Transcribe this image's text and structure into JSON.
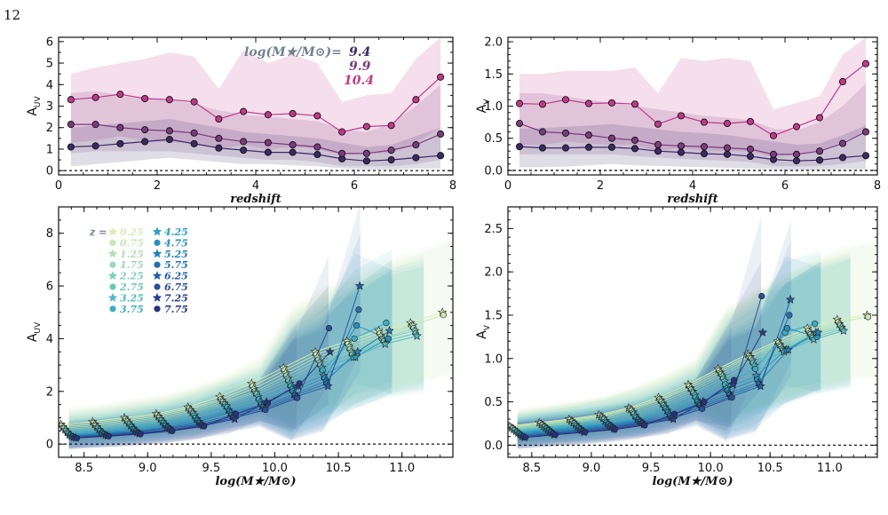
{
  "page_number": "12",
  "caption_fragment": "",
  "colors": {
    "mass_9_4": "#3b2a63",
    "mass_9_9": "#7a3b7e",
    "mass_10_4": "#c0398a",
    "legend_title": "#708090"
  },
  "chart_data": [
    {
      "id": "top-left",
      "type": "line",
      "xlabel": "redshift",
      "ylabel": "A",
      "ylabel_sub": "UV",
      "xlim": [
        0,
        8
      ],
      "ylim": [
        -0.2,
        6.2
      ],
      "xticks": [
        "0",
        "2",
        "4",
        "6",
        "8"
      ],
      "yticks": [
        "0",
        "1",
        "2",
        "3",
        "4",
        "5",
        "6"
      ],
      "legend_title": "log(M★/M⊙)=",
      "x": [
        0.25,
        0.75,
        1.25,
        1.75,
        2.25,
        2.75,
        3.25,
        3.75,
        4.25,
        4.75,
        5.25,
        5.75,
        6.25,
        6.75,
        7.25,
        7.75
      ],
      "series": [
        {
          "name": "9.4",
          "values": [
            1.1,
            1.15,
            1.25,
            1.35,
            1.45,
            1.25,
            1.05,
            0.95,
            0.85,
            0.85,
            0.75,
            0.55,
            0.45,
            0.5,
            0.6,
            0.7
          ],
          "lower": [
            0.2,
            0.3,
            0.4,
            0.5,
            0.6,
            0.5,
            0.4,
            0.3,
            0.3,
            0.25,
            0.2,
            0.1,
            0.05,
            0.05,
            0.1,
            0.1
          ],
          "upper": [
            2.0,
            2.1,
            2.2,
            2.3,
            2.4,
            2.2,
            2.0,
            1.8,
            1.7,
            1.6,
            1.5,
            1.3,
            1.1,
            1.2,
            1.6,
            2.0
          ]
        },
        {
          "name": "9.9",
          "values": [
            2.15,
            2.15,
            2.0,
            1.9,
            1.85,
            1.75,
            1.5,
            1.35,
            1.3,
            1.2,
            1.1,
            0.8,
            0.8,
            0.95,
            1.2,
            1.7
          ],
          "lower": [
            0.8,
            0.9,
            0.9,
            0.9,
            0.9,
            0.8,
            0.7,
            0.6,
            0.5,
            0.5,
            0.4,
            0.2,
            0.2,
            0.2,
            0.3,
            0.5
          ],
          "upper": [
            3.6,
            3.7,
            3.5,
            3.3,
            3.3,
            3.1,
            2.8,
            2.6,
            2.5,
            2.4,
            2.3,
            1.9,
            1.8,
            2.2,
            3.0,
            4.0
          ]
        },
        {
          "name": "10.4",
          "values": [
            3.3,
            3.4,
            3.55,
            3.35,
            3.3,
            3.2,
            2.4,
            2.75,
            2.6,
            2.65,
            2.55,
            1.8,
            2.05,
            2.1,
            3.3,
            4.35
          ],
          "lower": [
            1.3,
            1.4,
            1.6,
            1.4,
            1.3,
            1.3,
            1.0,
            1.2,
            1.0,
            1.1,
            1.0,
            0.7,
            0.8,
            0.8,
            1.3,
            2.0
          ],
          "upper": [
            4.5,
            4.8,
            5.0,
            5.2,
            5.5,
            5.3,
            3.8,
            5.6,
            5.0,
            5.4,
            5.0,
            3.2,
            3.5,
            3.6,
            5.2,
            6.2
          ]
        }
      ]
    },
    {
      "id": "top-right",
      "type": "line",
      "xlabel": "redshift",
      "ylabel": "A",
      "ylabel_sub": "V",
      "xlim": [
        0,
        8
      ],
      "ylim": [
        -0.07,
        2.07
      ],
      "xticks": [
        "0",
        "2",
        "4",
        "6",
        "8"
      ],
      "yticks": [
        "0.0",
        "0.5",
        "1.0",
        "1.5",
        "2.0"
      ],
      "x": [
        0.25,
        0.75,
        1.25,
        1.75,
        2.25,
        2.75,
        3.25,
        3.75,
        4.25,
        4.75,
        5.25,
        5.75,
        6.25,
        6.75,
        7.25,
        7.75
      ],
      "series": [
        {
          "name": "9.4",
          "values": [
            0.37,
            0.35,
            0.35,
            0.36,
            0.36,
            0.34,
            0.3,
            0.28,
            0.26,
            0.25,
            0.22,
            0.17,
            0.15,
            0.16,
            0.2,
            0.23
          ],
          "lower": [
            0.05,
            0.05,
            0.06,
            0.08,
            0.1,
            0.08,
            0.07,
            0.06,
            0.05,
            0.04,
            0.03,
            0.02,
            0.01,
            0.01,
            0.02,
            0.02
          ],
          "upper": [
            0.65,
            0.66,
            0.68,
            0.7,
            0.72,
            0.68,
            0.64,
            0.6,
            0.58,
            0.55,
            0.5,
            0.45,
            0.4,
            0.42,
            0.55,
            0.7
          ]
        },
        {
          "name": "9.9",
          "values": [
            0.73,
            0.6,
            0.58,
            0.55,
            0.5,
            0.47,
            0.4,
            0.38,
            0.37,
            0.35,
            0.33,
            0.25,
            0.25,
            0.3,
            0.42,
            0.6
          ],
          "lower": [
            0.25,
            0.25,
            0.25,
            0.25,
            0.25,
            0.22,
            0.2,
            0.18,
            0.16,
            0.15,
            0.13,
            0.07,
            0.06,
            0.07,
            0.1,
            0.15
          ],
          "upper": [
            1.2,
            1.2,
            1.15,
            1.1,
            1.05,
            1.0,
            0.95,
            0.9,
            0.85,
            0.82,
            0.78,
            0.65,
            0.62,
            0.75,
            1.0,
            1.35
          ]
        },
        {
          "name": "10.4",
          "values": [
            1.04,
            1.03,
            1.1,
            1.04,
            1.05,
            1.03,
            0.72,
            0.85,
            0.75,
            0.73,
            0.76,
            0.54,
            0.68,
            0.82,
            1.38,
            1.66
          ],
          "lower": [
            0.4,
            0.4,
            0.45,
            0.42,
            0.4,
            0.4,
            0.3,
            0.35,
            0.3,
            0.3,
            0.3,
            0.2,
            0.25,
            0.3,
            0.45,
            0.6
          ],
          "upper": [
            1.5,
            1.5,
            1.55,
            1.55,
            1.55,
            1.6,
            1.2,
            1.75,
            1.7,
            1.75,
            1.7,
            0.95,
            1.05,
            1.15,
            1.8,
            2.07
          ]
        }
      ]
    },
    {
      "id": "bottom-left",
      "type": "line",
      "xlabel": "log(M★/M⊙)",
      "ylabel": "A",
      "ylabel_sub": "UV",
      "xlim": [
        8.3,
        11.4
      ],
      "ylim": [
        -0.5,
        9.0
      ],
      "xticks": [
        "8.5",
        "9.0",
        "9.5",
        "10.0",
        "10.5",
        "11.0"
      ],
      "yticks": [
        "0",
        "2",
        "4",
        "6",
        "8"
      ],
      "legend_title": "z =",
      "z_values": [
        "0.25",
        "0.75",
        "1.25",
        "1.75",
        "2.25",
        "2.75",
        "3.25",
        "3.75",
        "4.25",
        "4.75",
        "5.25",
        "5.75",
        "6.25",
        "6.75",
        "7.25",
        "7.75"
      ],
      "z_colors": [
        "#d8eeb2",
        "#c6e7b4",
        "#b2e0b6",
        "#9dd7b9",
        "#85cebb",
        "#6cc4bd",
        "#54b9c0",
        "#3caec2",
        "#2c9fc1",
        "#2990bc",
        "#2680b6",
        "#2570ae",
        "#265fa4",
        "#284f98",
        "#293f8a",
        "#27327a"
      ],
      "z_markers": [
        "star",
        "circle",
        "star",
        "circle",
        "star",
        "circle",
        "star",
        "circle",
        "star",
        "circle",
        "star",
        "circle",
        "star",
        "circle",
        "star",
        "circle"
      ],
      "masses": [
        8.38,
        8.63,
        8.88,
        9.13,
        9.38,
        9.63,
        9.88,
        10.13,
        10.38,
        10.63,
        10.88,
        11.13,
        11.38
      ],
      "max_mass_index": [
        12,
        12,
        11,
        11,
        11,
        11,
        11,
        10,
        10,
        10,
        10,
        9,
        9,
        8,
        8,
        7
      ],
      "values": [
        [
          0.75,
          0.85,
          1.0,
          1.15,
          1.4,
          1.8,
          2.3,
          2.9,
          3.5,
          3.9,
          4.3,
          4.6,
          5.0
        ],
        [
          0.7,
          0.8,
          0.95,
          1.1,
          1.35,
          1.7,
          2.2,
          2.8,
          3.4,
          3.8,
          4.2,
          4.5,
          4.9
        ],
        [
          0.65,
          0.75,
          0.9,
          1.05,
          1.3,
          1.65,
          2.1,
          2.7,
          3.3,
          3.7,
          4.1,
          4.5,
          4.8
        ],
        [
          0.6,
          0.7,
          0.85,
          1.0,
          1.25,
          1.6,
          2.0,
          2.6,
          3.2,
          3.6,
          4.0,
          4.4,
          4.7
        ],
        [
          0.55,
          0.65,
          0.8,
          0.95,
          1.2,
          1.55,
          1.95,
          2.5,
          3.1,
          3.5,
          4.0,
          4.3,
          4.6
        ],
        [
          0.5,
          0.6,
          0.75,
          0.9,
          1.15,
          1.5,
          1.9,
          2.4,
          3.0,
          3.4,
          3.9,
          4.2,
          4.5
        ],
        [
          0.45,
          0.55,
          0.7,
          0.85,
          1.1,
          1.45,
          1.8,
          2.3,
          2.9,
          3.3,
          3.8,
          4.1,
          4.4
        ],
        [
          0.4,
          0.5,
          0.65,
          0.8,
          1.0,
          1.4,
          1.7,
          2.2,
          2.8,
          4.0,
          4.6,
          4.9,
          5.2
        ],
        [
          0.35,
          0.45,
          0.6,
          0.75,
          0.95,
          1.3,
          1.6,
          2.1,
          2.6,
          3.3,
          4.0,
          5.6,
          6.0
        ],
        [
          0.32,
          0.42,
          0.55,
          0.7,
          0.9,
          1.25,
          1.5,
          2.0,
          2.5,
          4.5,
          4.0,
          4.2,
          4.5
        ],
        [
          0.3,
          0.4,
          0.5,
          0.65,
          0.85,
          1.2,
          1.45,
          1.9,
          2.4,
          3.5,
          4.3,
          4.6,
          4.9
        ],
        [
          0.28,
          0.38,
          0.48,
          0.62,
          0.8,
          1.1,
          1.4,
          1.85,
          2.3,
          5.1,
          7.2,
          7.5,
          7.8
        ],
        [
          0.26,
          0.35,
          0.45,
          0.6,
          0.75,
          1.05,
          1.35,
          1.8,
          2.2,
          6.0,
          6.5,
          6.8,
          7.1
        ],
        [
          0.25,
          0.33,
          0.42,
          0.55,
          0.72,
          1.0,
          1.3,
          1.75,
          4.4,
          5.0,
          5.5,
          5.8,
          6.0
        ],
        [
          0.24,
          0.32,
          0.4,
          0.52,
          0.7,
          0.95,
          1.6,
          2.2,
          3.5,
          4.0,
          4.5,
          4.8,
          5.0
        ],
        [
          0.23,
          0.3,
          0.38,
          0.5,
          0.68,
          1.15,
          1.55,
          2.3,
          4.4,
          5.0,
          5.5,
          5.8,
          6.0
        ]
      ]
    },
    {
      "id": "bottom-right",
      "type": "line",
      "xlabel": "log(M★/M⊙)",
      "ylabel": "A",
      "ylabel_sub": "V",
      "xlim": [
        8.3,
        11.4
      ],
      "ylim": [
        -0.14,
        2.75
      ],
      "xticks": [
        "8.5",
        "9.0",
        "9.5",
        "10.0",
        "10.5",
        "11.0"
      ],
      "yticks": [
        "0.0",
        "0.5",
        "1.0",
        "1.5",
        "2.0",
        "2.5"
      ],
      "masses": [
        8.38,
        8.63,
        8.88,
        9.13,
        9.38,
        9.63,
        9.88,
        10.13,
        10.38,
        10.63,
        10.88,
        11.13,
        11.38
      ],
      "max_mass_index": [
        12,
        12,
        11,
        11,
        11,
        11,
        11,
        10,
        10,
        10,
        10,
        9,
        9,
        8,
        8,
        7
      ],
      "values": [
        [
          0.22,
          0.26,
          0.3,
          0.35,
          0.43,
          0.55,
          0.7,
          0.88,
          1.05,
          1.2,
          1.35,
          1.45,
          1.5
        ],
        [
          0.21,
          0.25,
          0.29,
          0.34,
          0.42,
          0.53,
          0.68,
          0.86,
          1.03,
          1.18,
          1.32,
          1.42,
          1.48
        ],
        [
          0.2,
          0.24,
          0.28,
          0.33,
          0.41,
          0.52,
          0.66,
          0.84,
          1.02,
          1.16,
          1.3,
          1.4,
          1.46
        ],
        [
          0.19,
          0.23,
          0.27,
          0.32,
          0.4,
          0.5,
          0.64,
          0.82,
          1.0,
          1.14,
          1.28,
          1.38,
          1.44
        ],
        [
          0.18,
          0.22,
          0.26,
          0.31,
          0.38,
          0.48,
          0.62,
          0.8,
          0.98,
          1.12,
          1.26,
          1.36,
          1.42
        ],
        [
          0.17,
          0.21,
          0.25,
          0.3,
          0.36,
          0.46,
          0.6,
          0.77,
          0.95,
          1.1,
          1.24,
          1.34,
          1.4
        ],
        [
          0.16,
          0.2,
          0.24,
          0.28,
          0.34,
          0.44,
          0.58,
          0.74,
          0.92,
          1.08,
          1.22,
          1.32,
          1.38
        ],
        [
          0.15,
          0.19,
          0.22,
          0.26,
          0.32,
          0.42,
          0.55,
          0.7,
          0.88,
          1.3,
          1.4,
          1.5,
          1.55
        ],
        [
          0.14,
          0.18,
          0.21,
          0.25,
          0.3,
          0.4,
          0.52,
          0.66,
          0.8,
          1.1,
          1.3,
          1.6,
          1.7
        ],
        [
          0.13,
          0.17,
          0.2,
          0.24,
          0.29,
          0.38,
          0.5,
          0.63,
          0.76,
          1.35,
          1.25,
          1.3,
          1.35
        ],
        [
          0.12,
          0.16,
          0.19,
          0.23,
          0.28,
          0.36,
          0.48,
          0.6,
          0.72,
          1.1,
          1.3,
          1.4,
          1.45
        ],
        [
          0.11,
          0.15,
          0.18,
          0.22,
          0.27,
          0.34,
          0.46,
          0.58,
          0.7,
          1.5,
          2.05,
          2.1,
          2.2
        ],
        [
          0.1,
          0.14,
          0.17,
          0.21,
          0.26,
          0.32,
          0.44,
          0.56,
          0.68,
          1.68,
          1.8,
          1.9,
          2.0
        ],
        [
          0.1,
          0.13,
          0.16,
          0.2,
          0.25,
          0.31,
          0.42,
          0.55,
          1.72,
          1.5,
          1.6,
          1.7,
          1.8
        ],
        [
          0.09,
          0.12,
          0.15,
          0.19,
          0.24,
          0.3,
          0.5,
          0.7,
          1.3,
          1.4,
          1.5,
          1.6,
          1.7
        ],
        [
          0.09,
          0.12,
          0.15,
          0.18,
          0.23,
          0.36,
          0.5,
          0.75,
          1.4,
          1.5,
          1.6,
          1.7,
          1.8
        ]
      ]
    }
  ]
}
